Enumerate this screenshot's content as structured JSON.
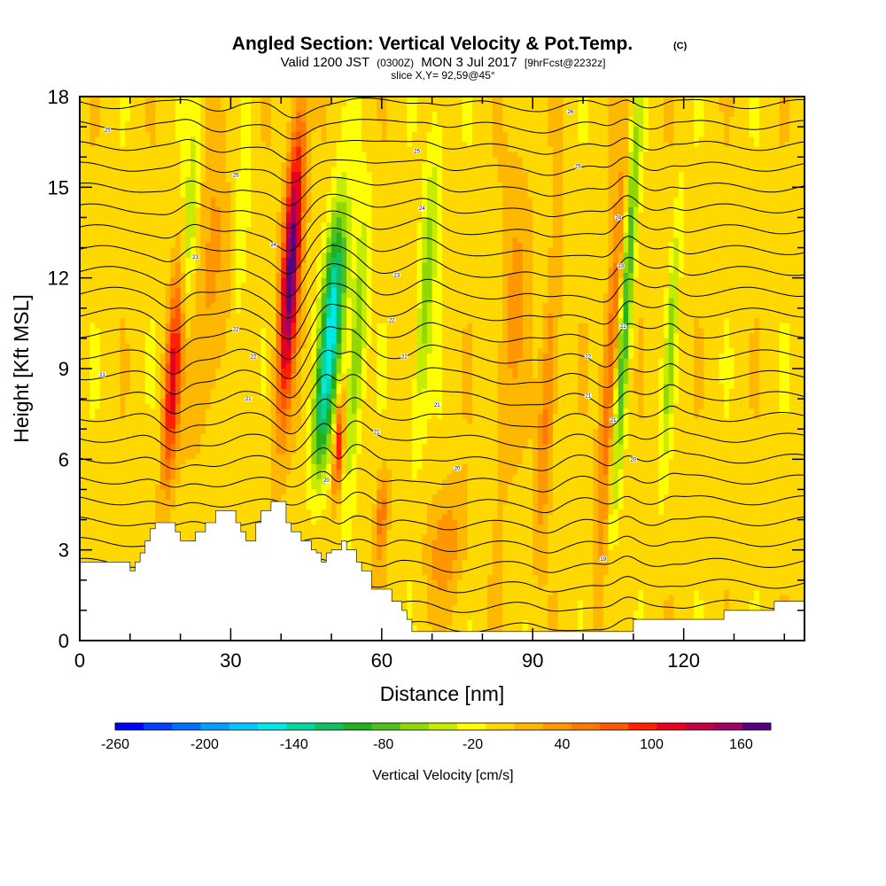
{
  "chart_data": {
    "type": "heatmap",
    "title": "Angled Section: Vertical Velocity & Pot.Temp.",
    "title_mark": "(C)",
    "subtitle_parts": [
      "Valid 1200 JST",
      "(0300Z)",
      "MON 3 Jul 2017",
      "[9hrFcst@2232z]"
    ],
    "slice_label": "slice X,Y= 92,59@45°",
    "xlabel": "Distance [nm]",
    "ylabel": "Height [Kft MSL]",
    "xlim": [
      0,
      144
    ],
    "ylim": [
      0,
      18
    ],
    "x_ticks": [
      0,
      30,
      60,
      90,
      120
    ],
    "y_ticks": [
      0,
      3,
      6,
      9,
      12,
      15,
      18
    ],
    "grid": false,
    "colorbar": {
      "label": "Vertical Velocity [cm/s]",
      "min": -260,
      "max": 180,
      "step": 20,
      "tick_labels": [
        "-260",
        "-200",
        "-140",
        "-80",
        "-20",
        "40",
        "100",
        "160"
      ],
      "tick_values": [
        -260,
        -200,
        -140,
        -80,
        -20,
        40,
        100,
        160
      ],
      "colors": [
        "#0000ff",
        "#0040ff",
        "#0070ff",
        "#00a0ff",
        "#00c8ff",
        "#00e8e8",
        "#00d8a0",
        "#10c060",
        "#20b020",
        "#50c020",
        "#90d800",
        "#c8ec00",
        "#ffff00",
        "#ffd800",
        "#ffb800",
        "#ff9800",
        "#ff7800",
        "#ff5800",
        "#ff2000",
        "#e80020",
        "#c00040",
        "#a00060",
        "#580080"
      ]
    },
    "background_velocity": 10,
    "updraft_cores": [
      {
        "x": 18.5,
        "y_center": 8.6,
        "y_spread": 3.4,
        "width": 1.6,
        "peak": 120
      },
      {
        "x": 42.0,
        "y_center": 12.5,
        "y_spread": 4.8,
        "width": 1.8,
        "peak": 185
      },
      {
        "x": 51.5,
        "y_center": 6.5,
        "y_spread": 1.7,
        "width": 0.9,
        "peak": 110
      },
      {
        "x": 60.0,
        "y_center": 4.2,
        "y_spread": 1.6,
        "width": 1.2,
        "peak": 60
      },
      {
        "x": 73.0,
        "y_center": 3.2,
        "y_spread": 2.0,
        "width": 4.0,
        "peak": 40
      },
      {
        "x": 93.0,
        "y_center": 8.0,
        "y_spread": 5.0,
        "width": 1.6,
        "peak": 60
      },
      {
        "x": 105.5,
        "y_center": 9.0,
        "y_spread": 6.5,
        "width": 1.6,
        "peak": 75
      },
      {
        "x": 26.0,
        "y_center": 11.5,
        "y_spread": 5.0,
        "width": 3.0,
        "peak": 40
      },
      {
        "x": 86.0,
        "y_center": 11.0,
        "y_spread": 6.0,
        "width": 3.0,
        "peak": 35
      }
    ],
    "downdraft_cores": [
      {
        "x": 50.5,
        "y_center": 11.0,
        "y_spread": 3.4,
        "width": 2.2,
        "peak": -150
      },
      {
        "x": 48.0,
        "y_center": 7.5,
        "y_spread": 2.5,
        "width": 1.8,
        "peak": -85
      },
      {
        "x": 55.0,
        "y_center": 9.5,
        "y_spread": 4.5,
        "width": 1.6,
        "peak": -75
      },
      {
        "x": 69.0,
        "y_center": 12.0,
        "y_spread": 5.5,
        "width": 1.6,
        "peak": -60
      },
      {
        "x": 108.5,
        "y_center": 11.0,
        "y_spread": 6.5,
        "width": 1.2,
        "peak": -100
      },
      {
        "x": 117.5,
        "y_center": 10.0,
        "y_spread": 4.5,
        "width": 1.0,
        "peak": -55
      },
      {
        "x": 22.0,
        "y_center": 14.0,
        "y_spread": 4.0,
        "width": 1.4,
        "peak": -50
      },
      {
        "x": 32.0,
        "y_center": 13.0,
        "y_spread": 4.0,
        "width": 1.2,
        "peak": -30
      }
    ],
    "terrain": [
      [
        0,
        2.6
      ],
      [
        10,
        2.6
      ],
      [
        10,
        2.3
      ],
      [
        11,
        2.3
      ],
      [
        11,
        2.6
      ],
      [
        12,
        2.6
      ],
      [
        12,
        2.9
      ],
      [
        13,
        2.9
      ],
      [
        13,
        3.3
      ],
      [
        14,
        3.3
      ],
      [
        14,
        3.7
      ],
      [
        15,
        3.7
      ],
      [
        15,
        3.9
      ],
      [
        19,
        3.9
      ],
      [
        19,
        3.6
      ],
      [
        20,
        3.6
      ],
      [
        20,
        3.3
      ],
      [
        23,
        3.3
      ],
      [
        23,
        3.6
      ],
      [
        25,
        3.6
      ],
      [
        25,
        3.9
      ],
      [
        27,
        3.9
      ],
      [
        27,
        4.3
      ],
      [
        31,
        4.3
      ],
      [
        31,
        3.9
      ],
      [
        32,
        3.9
      ],
      [
        32,
        3.6
      ],
      [
        33,
        3.6
      ],
      [
        33,
        3.3
      ],
      [
        35,
        3.3
      ],
      [
        35,
        3.9
      ],
      [
        36,
        3.9
      ],
      [
        36,
        4.3
      ],
      [
        38,
        4.3
      ],
      [
        38,
        4.6
      ],
      [
        41,
        4.6
      ],
      [
        41,
        3.9
      ],
      [
        42,
        3.9
      ],
      [
        42,
        3.6
      ],
      [
        44,
        3.6
      ],
      [
        44,
        3.3
      ],
      [
        46,
        3.3
      ],
      [
        46,
        3.0
      ],
      [
        47,
        3.0
      ],
      [
        47,
        2.9
      ],
      [
        48,
        2.9
      ],
      [
        48,
        2.6
      ],
      [
        49,
        2.6
      ],
      [
        49,
        2.9
      ],
      [
        50,
        2.9
      ],
      [
        50,
        3.0
      ],
      [
        52,
        3.0
      ],
      [
        52,
        3.3
      ],
      [
        53,
        3.3
      ],
      [
        53,
        3.0
      ],
      [
        55,
        3.0
      ],
      [
        55,
        2.6
      ],
      [
        56,
        2.6
      ],
      [
        56,
        2.3
      ],
      [
        58,
        2.3
      ],
      [
        58,
        1.7
      ],
      [
        62,
        1.7
      ],
      [
        62,
        1.3
      ],
      [
        64,
        1.3
      ],
      [
        64,
        1.0
      ],
      [
        65,
        1.0
      ],
      [
        65,
        0.7
      ],
      [
        66,
        0.7
      ],
      [
        66,
        0.3
      ],
      [
        110,
        0.3
      ],
      [
        110,
        0.7
      ],
      [
        128,
        0.7
      ],
      [
        128,
        1.0
      ],
      [
        138,
        1.0
      ],
      [
        138,
        1.3
      ],
      [
        144,
        1.3
      ]
    ],
    "theta_contours": {
      "count": 27,
      "base_height": 0.5,
      "spacing": 0.69,
      "labels": [
        {
          "x": 5.5,
          "y": 16.9,
          "text": "25"
        },
        {
          "x": 4.5,
          "y": 8.8,
          "text": "21"
        },
        {
          "x": 23,
          "y": 12.7,
          "text": "23"
        },
        {
          "x": 31,
          "y": 10.3,
          "text": "22"
        },
        {
          "x": 31,
          "y": 15.4,
          "text": "25"
        },
        {
          "x": 38.5,
          "y": 13.1,
          "text": "24"
        },
        {
          "x": 34.5,
          "y": 9.4,
          "text": "22"
        },
        {
          "x": 33.5,
          "y": 8.0,
          "text": "21"
        },
        {
          "x": 49,
          "y": 5.3,
          "text": "20"
        },
        {
          "x": 59,
          "y": 6.9,
          "text": "21"
        },
        {
          "x": 62,
          "y": 10.6,
          "text": "22"
        },
        {
          "x": 63,
          "y": 12.1,
          "text": "23"
        },
        {
          "x": 64.5,
          "y": 9.4,
          "text": "22"
        },
        {
          "x": 68,
          "y": 14.3,
          "text": "24"
        },
        {
          "x": 67,
          "y": 16.2,
          "text": "25"
        },
        {
          "x": 71,
          "y": 7.8,
          "text": "21"
        },
        {
          "x": 75,
          "y": 5.7,
          "text": "20"
        },
        {
          "x": 97.5,
          "y": 17.5,
          "text": "26"
        },
        {
          "x": 99,
          "y": 15.7,
          "text": "25"
        },
        {
          "x": 101,
          "y": 9.4,
          "text": "22"
        },
        {
          "x": 101,
          "y": 8.1,
          "text": "21"
        },
        {
          "x": 107,
          "y": 14.0,
          "text": "24"
        },
        {
          "x": 107.5,
          "y": 12.4,
          "text": "23"
        },
        {
          "x": 108,
          "y": 10.4,
          "text": "22"
        },
        {
          "x": 106,
          "y": 7.3,
          "text": "21"
        },
        {
          "x": 110,
          "y": 6.0,
          "text": "20"
        },
        {
          "x": 104,
          "y": 2.7,
          "text": "19"
        }
      ]
    }
  }
}
